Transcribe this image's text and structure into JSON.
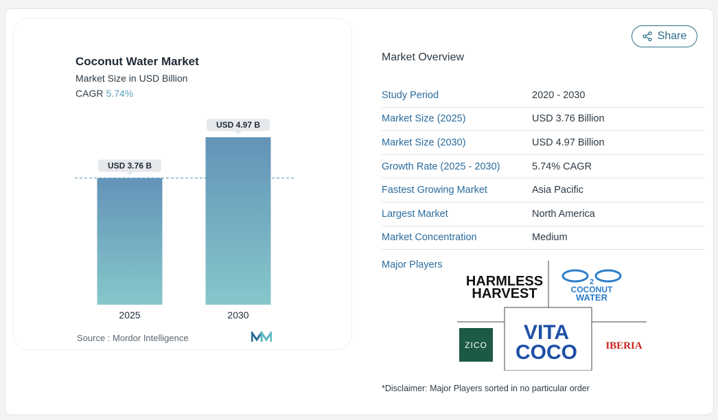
{
  "chart_card": {
    "title": "Coconut Water Market",
    "subtitle": "Market Size in USD Billion",
    "cagr_label": "CAGR",
    "cagr_value": "5.74%",
    "source": "Source :  Mordor Intelligence"
  },
  "chart_data": {
    "type": "bar",
    "categories": [
      "2025",
      "2030"
    ],
    "values": [
      3.76,
      4.97
    ],
    "data_labels": [
      "USD 3.76 B",
      "USD 4.97 B"
    ],
    "ylim": [
      0,
      4.97
    ],
    "reference_line": 3.76,
    "colors": {
      "bar_top": "#6393b8",
      "bar_bottom": "#87c7cb",
      "ref_line": "#5a8fae"
    }
  },
  "share": {
    "label": "Share"
  },
  "overview": {
    "title": "Market Overview",
    "rows": [
      {
        "key": "Study Period",
        "value": "2020 - 2030"
      },
      {
        "key": "Market Size (2025)",
        "value": "USD 3.76 Billion"
      },
      {
        "key": "Market Size (2030)",
        "value": "USD 4.97 Billion"
      },
      {
        "key": "Growth Rate (2025 - 2030)",
        "value": "5.74% CAGR"
      },
      {
        "key": "Fastest Growing Market",
        "value": "Asia Pacific"
      },
      {
        "key": "Largest Market",
        "value": "North America"
      },
      {
        "key": "Market Concentration",
        "value": "Medium"
      }
    ]
  },
  "major_players": {
    "title": "Major Players",
    "logos": {
      "harmless_harvest": [
        "HARMLESS",
        "HARVEST"
      ],
      "c2o": [
        "COCONUT",
        "WATER"
      ],
      "zico": "ZICO",
      "vita_coco": [
        "VITA",
        "COCO"
      ],
      "iberia": "IBERIA"
    }
  },
  "disclaimer": "*Disclaimer: Major Players sorted in no particular order"
}
